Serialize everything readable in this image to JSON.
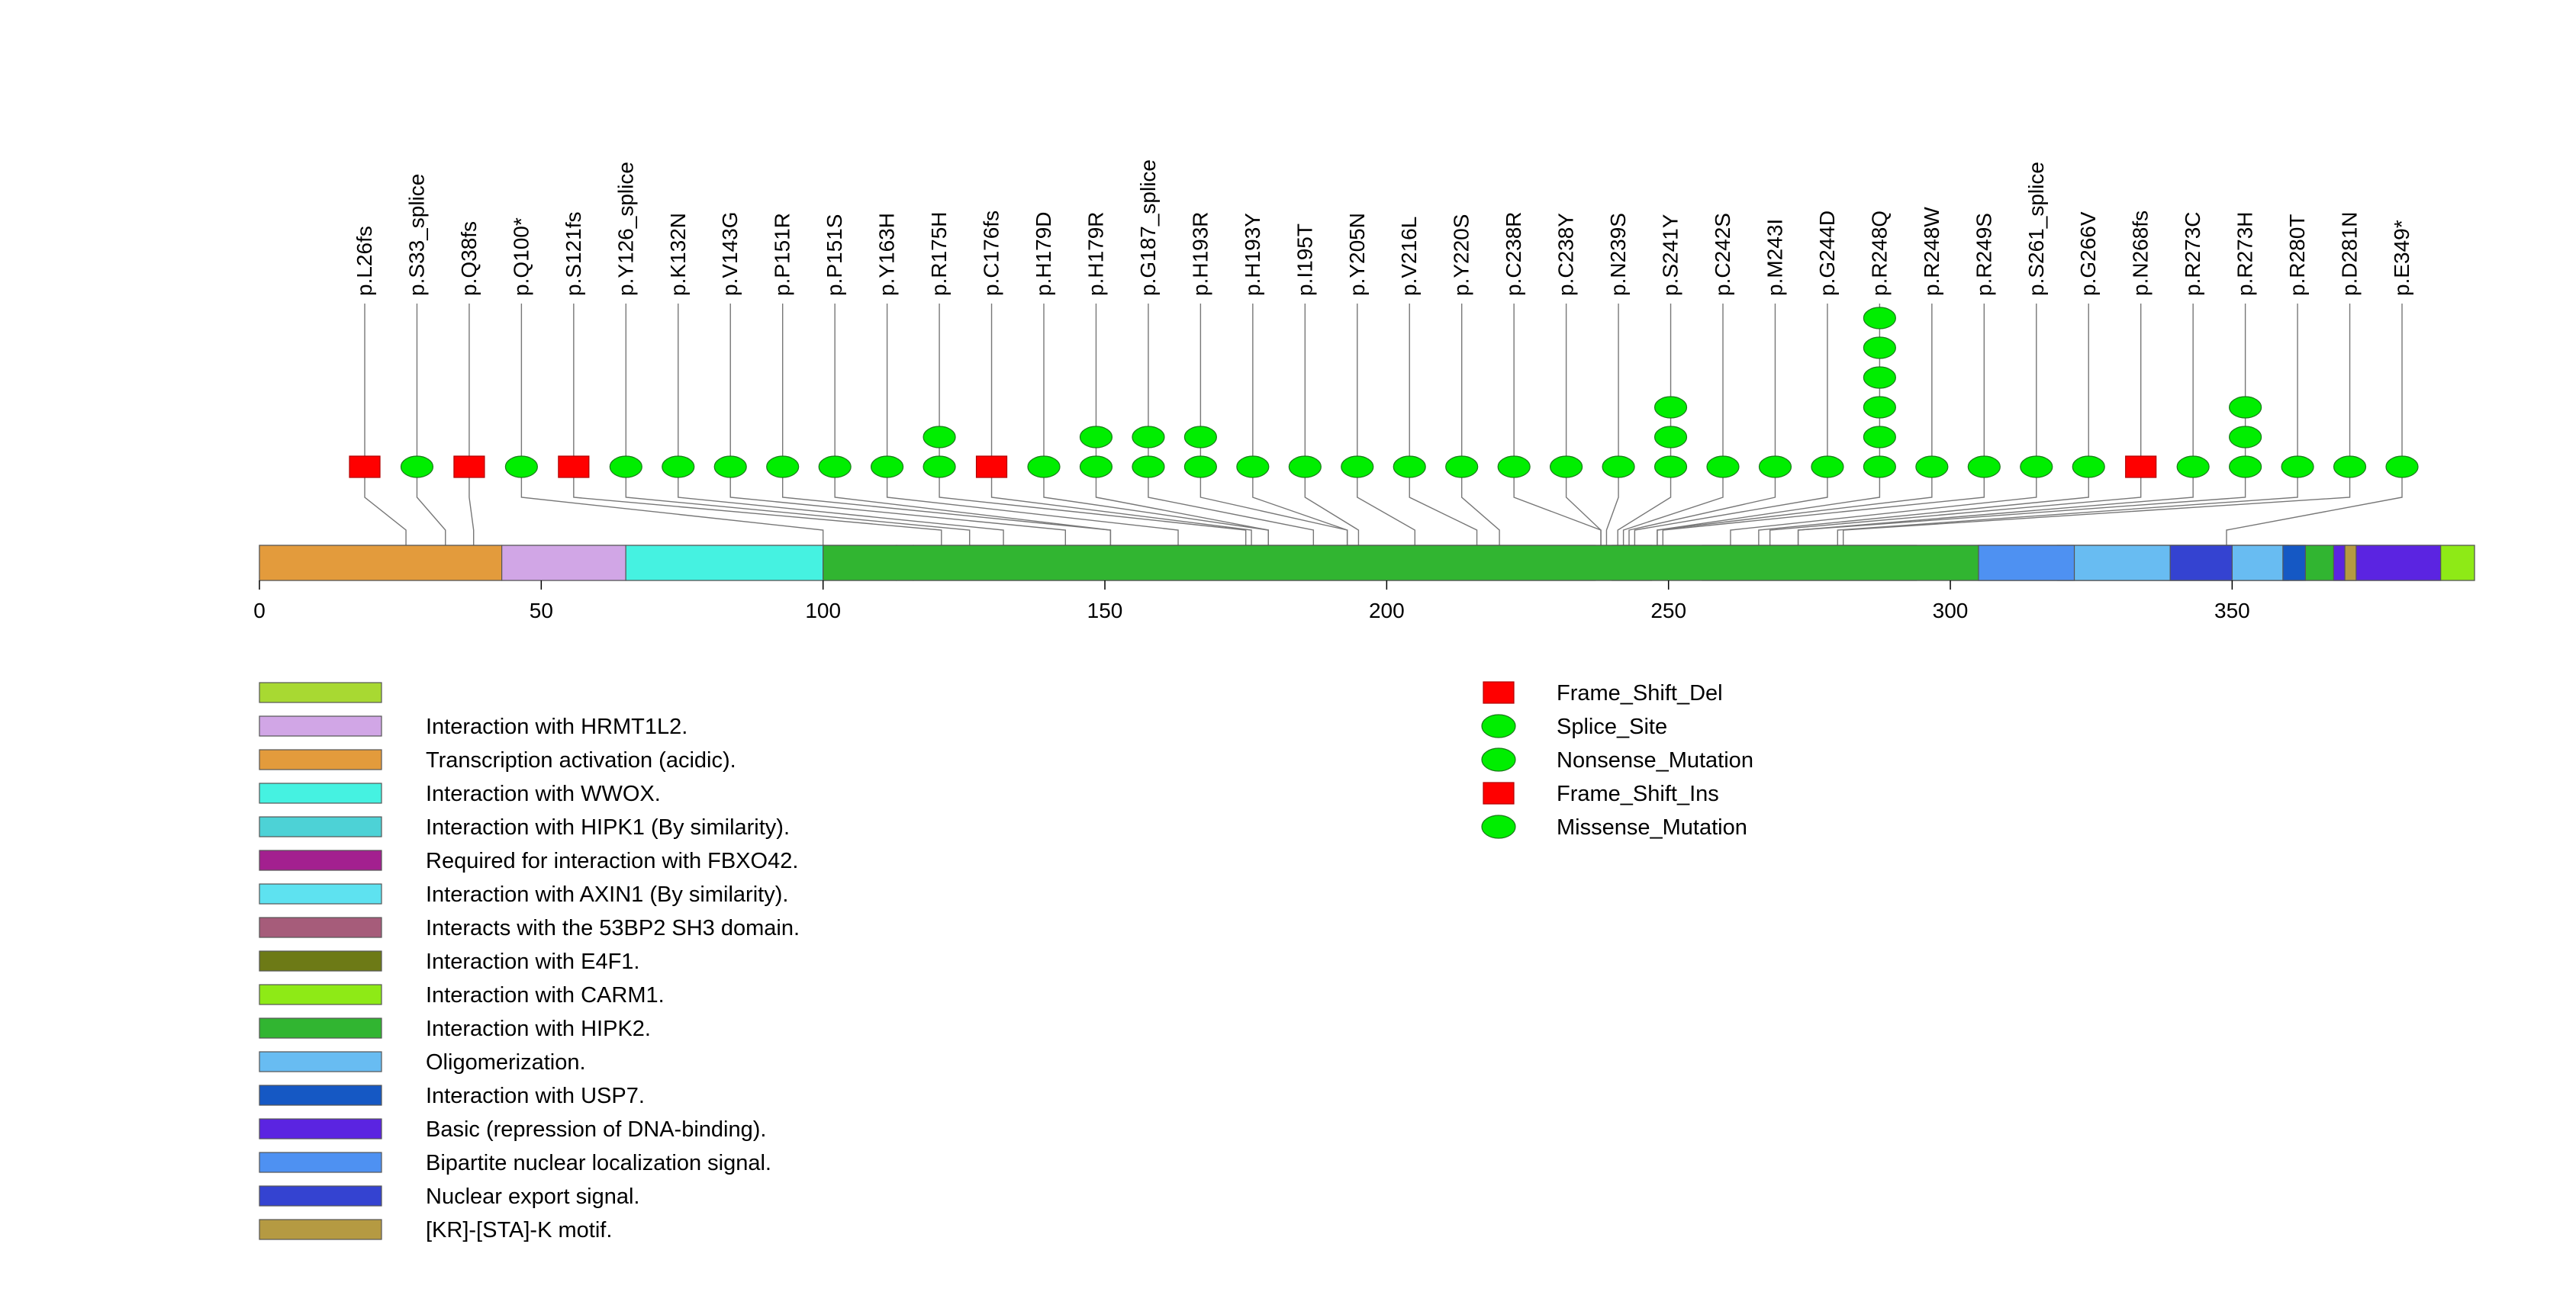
{
  "chart_data": {
    "type": "lollipop",
    "protein_length": 393,
    "xlim": [
      0,
      393
    ],
    "x_ticks": [
      0,
      50,
      100,
      150,
      200,
      250,
      300,
      350
    ],
    "domains": [
      {
        "label": "",
        "start": 0,
        "end": 393,
        "color": "#a8d932"
      },
      {
        "label": "Transcription activation (acidic).",
        "start": 0,
        "end": 43,
        "color": "#e39b3c"
      },
      {
        "label": "Interaction with HRMT1L2.",
        "start": 43,
        "end": 65,
        "color": "#d1a6e6"
      },
      {
        "label": "Interaction with WWOX.",
        "start": 65,
        "end": 100,
        "color": "#45f2e1"
      },
      {
        "label": "Interaction with HIPK1 (By similarity).",
        "start": 100,
        "end": 113,
        "color": "#4dd2d6"
      },
      {
        "label": "Required for interaction with FBXO42.",
        "start": 113,
        "end": 116,
        "color": "#a3208f"
      },
      {
        "label": "Interaction with AXIN1 (By similarity).",
        "start": 116,
        "end": 237,
        "color": "#5ee2f0"
      },
      {
        "label": "Interacts with the 53BP2 SH3 domain.",
        "start": 240,
        "end": 247,
        "color": "#a65c7a"
      },
      {
        "label": "Interaction with E4F1.",
        "start": 256,
        "end": 294,
        "color": "#6d7a16"
      },
      {
        "label": "Interaction with CARM1.",
        "start": 300,
        "end": 393,
        "color": "#8eea16"
      },
      {
        "label": "Interaction with HIPK2.",
        "start": 100,
        "end": 370,
        "color": "#31b531"
      },
      {
        "label": "Oligomerization.",
        "start": 319,
        "end": 360,
        "color": "#68bcf2"
      },
      {
        "label": "Interaction with USP7.",
        "start": 359,
        "end": 363,
        "color": "#1558c4"
      },
      {
        "label": "Basic (repression of DNA-binding).",
        "start": 368,
        "end": 387,
        "color": "#5b24e1"
      },
      {
        "label": "Bipartite nuclear localization signal.",
        "start": 305,
        "end": 322,
        "color": "#4e91f2"
      },
      {
        "label": "Nuclear export signal.",
        "start": 339,
        "end": 350,
        "color": "#3443d1"
      },
      {
        "label": "[KR]-[STA]-K motif.",
        "start": 370,
        "end": 372,
        "color": "#b59a42"
      }
    ],
    "mutations": [
      {
        "label": "p.L26fs",
        "position": 26,
        "count": 1,
        "type": "Frame_Shift_Del"
      },
      {
        "label": "p.S33_splice",
        "position": 33,
        "count": 1,
        "type": "Splice_Site"
      },
      {
        "label": "p.Q38fs",
        "position": 38,
        "count": 1,
        "type": "Frame_Shift_Ins"
      },
      {
        "label": "p.Q100*",
        "position": 100,
        "count": 1,
        "type": "Nonsense_Mutation"
      },
      {
        "label": "p.S121fs",
        "position": 121,
        "count": 1,
        "type": "Frame_Shift_Del"
      },
      {
        "label": "p.Y126_splice",
        "position": 126,
        "count": 1,
        "type": "Splice_Site"
      },
      {
        "label": "p.K132N",
        "position": 132,
        "count": 1,
        "type": "Missense_Mutation"
      },
      {
        "label": "p.V143G",
        "position": 143,
        "count": 1,
        "type": "Missense_Mutation"
      },
      {
        "label": "p.P151R",
        "position": 151,
        "count": 1,
        "type": "Missense_Mutation"
      },
      {
        "label": "p.P151S",
        "position": 151,
        "count": 1,
        "type": "Missense_Mutation"
      },
      {
        "label": "p.Y163H",
        "position": 163,
        "count": 1,
        "type": "Missense_Mutation"
      },
      {
        "label": "p.R175H",
        "position": 175,
        "count": 2,
        "type": "Missense_Mutation"
      },
      {
        "label": "p.C176fs",
        "position": 176,
        "count": 1,
        "type": "Frame_Shift_Del"
      },
      {
        "label": "p.H179D",
        "position": 179,
        "count": 1,
        "type": "Missense_Mutation"
      },
      {
        "label": "p.H179R",
        "position": 179,
        "count": 2,
        "type": "Missense_Mutation"
      },
      {
        "label": "p.G187_splice",
        "position": 187,
        "count": 2,
        "type": "Splice_Site"
      },
      {
        "label": "p.H193R",
        "position": 193,
        "count": 2,
        "type": "Missense_Mutation"
      },
      {
        "label": "p.H193Y",
        "position": 193,
        "count": 1,
        "type": "Missense_Mutation"
      },
      {
        "label": "p.I195T",
        "position": 195,
        "count": 1,
        "type": "Missense_Mutation"
      },
      {
        "label": "p.Y205N",
        "position": 205,
        "count": 1,
        "type": "Missense_Mutation"
      },
      {
        "label": "p.V216L",
        "position": 216,
        "count": 1,
        "type": "Missense_Mutation"
      },
      {
        "label": "p.Y220S",
        "position": 220,
        "count": 1,
        "type": "Missense_Mutation"
      },
      {
        "label": "p.C238R",
        "position": 238,
        "count": 1,
        "type": "Missense_Mutation"
      },
      {
        "label": "p.C238Y",
        "position": 238,
        "count": 1,
        "type": "Missense_Mutation"
      },
      {
        "label": "p.N239S",
        "position": 239,
        "count": 1,
        "type": "Missense_Mutation"
      },
      {
        "label": "p.S241Y",
        "position": 241,
        "count": 3,
        "type": "Missense_Mutation"
      },
      {
        "label": "p.C242S",
        "position": 242,
        "count": 1,
        "type": "Missense_Mutation"
      },
      {
        "label": "p.M243I",
        "position": 243,
        "count": 1,
        "type": "Missense_Mutation"
      },
      {
        "label": "p.G244D",
        "position": 244,
        "count": 1,
        "type": "Missense_Mutation"
      },
      {
        "label": "p.R248Q",
        "position": 248,
        "count": 6,
        "type": "Missense_Mutation"
      },
      {
        "label": "p.R248W",
        "position": 248,
        "count": 1,
        "type": "Missense_Mutation"
      },
      {
        "label": "p.R249S",
        "position": 249,
        "count": 1,
        "type": "Missense_Mutation"
      },
      {
        "label": "p.S261_splice",
        "position": 261,
        "count": 1,
        "type": "Splice_Site"
      },
      {
        "label": "p.G266V",
        "position": 266,
        "count": 1,
        "type": "Missense_Mutation"
      },
      {
        "label": "p.N268fs",
        "position": 268,
        "count": 1,
        "type": "Frame_Shift_Del"
      },
      {
        "label": "p.R273C",
        "position": 273,
        "count": 1,
        "type": "Missense_Mutation"
      },
      {
        "label": "p.R273H",
        "position": 273,
        "count": 3,
        "type": "Missense_Mutation"
      },
      {
        "label": "p.R280T",
        "position": 280,
        "count": 1,
        "type": "Missense_Mutation"
      },
      {
        "label": "p.D281N",
        "position": 281,
        "count": 1,
        "type": "Missense_Mutation"
      },
      {
        "label": "p.E349*",
        "position": 349,
        "count": 1,
        "type": "Nonsense_Mutation"
      }
    ],
    "domain_legend": [
      {
        "label": "",
        "color": "#a8d932"
      },
      {
        "label": "Interaction with HRMT1L2.",
        "color": "#d1a6e6"
      },
      {
        "label": "Transcription activation (acidic).",
        "color": "#e39b3c"
      },
      {
        "label": "Interaction with WWOX.",
        "color": "#45f2e1"
      },
      {
        "label": "Interaction with HIPK1 (By similarity).",
        "color": "#4dd2d6"
      },
      {
        "label": "Required for interaction with FBXO42.",
        "color": "#a3208f"
      },
      {
        "label": "Interaction with AXIN1 (By similarity).",
        "color": "#5ee2f0"
      },
      {
        "label": "Interacts with the 53BP2 SH3 domain.",
        "color": "#a65c7a"
      },
      {
        "label": "Interaction with E4F1.",
        "color": "#6d7a16"
      },
      {
        "label": "Interaction with CARM1.",
        "color": "#8eea16"
      },
      {
        "label": "Interaction with HIPK2.",
        "color": "#31b531"
      },
      {
        "label": "Oligomerization.",
        "color": "#68bcf2"
      },
      {
        "label": "Interaction with USP7.",
        "color": "#1558c4"
      },
      {
        "label": "Basic (repression of DNA-binding).",
        "color": "#5b24e1"
      },
      {
        "label": "Bipartite nuclear localization signal.",
        "color": "#4e91f2"
      },
      {
        "label": "Nuclear export signal.",
        "color": "#3443d1"
      },
      {
        "label": "[KR]-[STA]-K motif.",
        "color": "#b59a42"
      }
    ],
    "mutation_legend": [
      {
        "label": "Frame_Shift_Del",
        "shape": "rect",
        "color": "#ff0000"
      },
      {
        "label": "Splice_Site",
        "shape": "ellipse",
        "color": "#00ff00"
      },
      {
        "label": "Nonsense_Mutation",
        "shape": "ellipse",
        "color": "#00ff00"
      },
      {
        "label": "Frame_Shift_Ins",
        "shape": "rect",
        "color": "#ff0000"
      },
      {
        "label": "Missense_Mutation",
        "shape": "ellipse",
        "color": "#00ff00"
      }
    ]
  }
}
